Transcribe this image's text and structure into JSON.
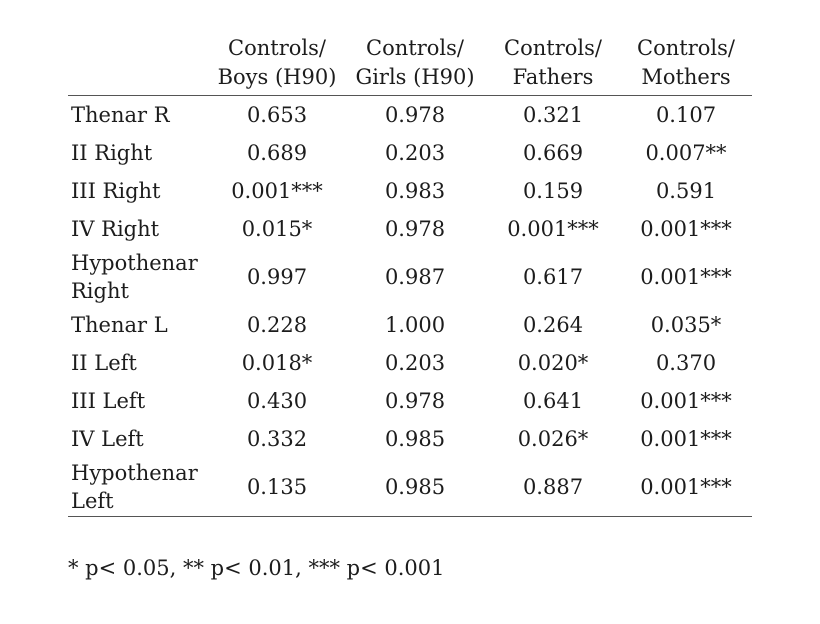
{
  "table": {
    "columns": [
      "",
      "Controls/\nBoys (H90)",
      "Controls/\nGirls (H90)",
      "Controls/\nFathers",
      "Controls/\nMothers"
    ],
    "column_lines": [
      [
        "Controls/",
        "Boys (H90)"
      ],
      [
        "Controls/",
        "Girls (H90)"
      ],
      [
        "Controls/",
        "Fathers"
      ],
      [
        "Controls/",
        "Mothers"
      ]
    ],
    "rows": [
      {
        "label": "Thenar R",
        "values": [
          "0.653",
          "0.978",
          "0.321",
          "0.107"
        ]
      },
      {
        "label": "II Right",
        "values": [
          "0.689",
          "0.203",
          "0.669",
          "0.007**"
        ]
      },
      {
        "label": "III Right",
        "values": [
          "0.001***",
          "0.983",
          "0.159",
          "0.591"
        ]
      },
      {
        "label": "IV Right",
        "values": [
          "0.015*",
          "0.978",
          "0.001***",
          "0.001***"
        ]
      },
      {
        "label": "Hypothenar Right",
        "label_lines": [
          "Hypothenar",
          "Right"
        ],
        "values": [
          "0.997",
          "0.987",
          "0.617",
          "0.001***"
        ]
      },
      {
        "label": "Thenar L",
        "values": [
          "0.228",
          "1.000",
          "0.264",
          "0.035*"
        ]
      },
      {
        "label": "II Left",
        "values": [
          "0.018*",
          "0.203",
          "0.020*",
          "0.370"
        ]
      },
      {
        "label": "III Left",
        "values": [
          "0.430",
          "0.978",
          "0.641",
          "0.001***"
        ]
      },
      {
        "label": "IV Left",
        "values": [
          "0.332",
          "0.985",
          "0.026*",
          "0.001***"
        ]
      },
      {
        "label": "Hypothenar Left",
        "label_lines": [
          "Hypothenar",
          "Left"
        ],
        "values": [
          "0.135",
          "0.985",
          "0.887",
          "0.001***"
        ]
      }
    ]
  },
  "footnote": "* p< 0.05, ** p< 0.01, *** p< 0.001"
}
